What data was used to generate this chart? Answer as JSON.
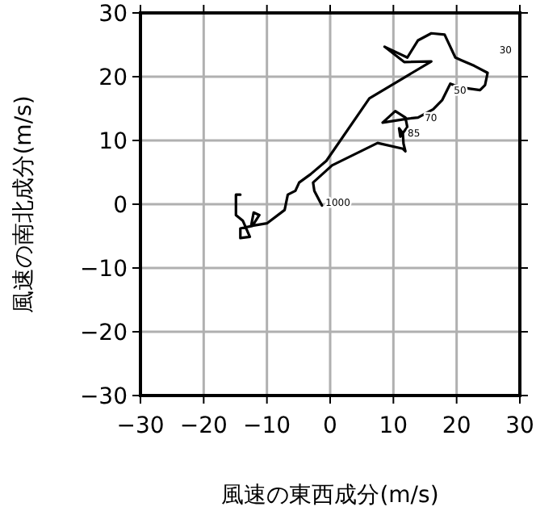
{
  "chart_data": {
    "type": "line",
    "xlabel": "風速の東西成分(m/s)",
    "ylabel": "風速の南北成分(m/s)",
    "xlim": [
      -30,
      30
    ],
    "ylim": [
      -30,
      30
    ],
    "xticks": [
      {
        "value": -30,
        "label": "−30"
      },
      {
        "value": -20,
        "label": "−20"
      },
      {
        "value": -10,
        "label": "−10"
      },
      0,
      10,
      20,
      30
    ],
    "yticks": [
      {
        "value": -30,
        "label": "−30"
      },
      {
        "value": -20,
        "label": "−20"
      },
      {
        "value": -10,
        "label": "−10"
      },
      0,
      10,
      20,
      30
    ],
    "grid": true,
    "marker": "none",
    "line_style": "solid",
    "series": [
      {
        "color": "#000000",
        "x": [
          -1.3,
          -2.5,
          -2.7,
          0.3,
          7.5,
          11.5,
          11.9,
          11.6,
          11.5,
          10.9,
          11.1,
          12.2,
          11.9,
          10.3,
          8.3,
          12.2,
          13.9,
          16.3,
          17.7,
          19.0,
          20.7,
          23.7,
          24.5,
          24.9,
          22.8,
          20.7,
          19.8,
          18.1,
          16.0,
          13.9,
          12.2,
          8.6,
          11.7,
          16.0,
          6.2,
          -0.6,
          -3.1,
          -4.9,
          -5.5,
          -6.7,
          -7.2,
          -10.0,
          -12.5,
          -12.1,
          -11.2,
          -12.3,
          -14.2,
          -14.2,
          -12.7,
          -13.8,
          -14.9,
          -14.9,
          -14.2
        ],
        "values": [
          -0.2,
          2.1,
          3.4,
          6.1,
          9.6,
          8.7,
          8.3,
          9.5,
          11.1,
          11.9,
          10.6,
          12.1,
          13.6,
          14.6,
          12.8,
          13.4,
          13.6,
          14.9,
          16.3,
          18.9,
          18.3,
          17.9,
          18.7,
          20.6,
          21.7,
          22.6,
          23.0,
          26.6,
          26.8,
          25.7,
          23.0,
          24.7,
          22.3,
          22.4,
          16.6,
          6.8,
          4.7,
          3.4,
          2.1,
          1.5,
          -0.9,
          -3.0,
          -3.4,
          -1.3,
          -1.7,
          -3.4,
          -3.8,
          -5.3,
          -5.1,
          -2.6,
          -1.7,
          1.5,
          1.5
        ]
      }
    ],
    "annotations": [
      {
        "text": "1000",
        "x": -1.5,
        "y": 0.2
      },
      {
        "text": "85",
        "x": 11.5,
        "y": 11.1
      },
      {
        "text": "70",
        "x": 14.2,
        "y": 13.6
      },
      {
        "text": "50",
        "x": 18.8,
        "y": 17.8
      },
      "30"
    ]
  }
}
